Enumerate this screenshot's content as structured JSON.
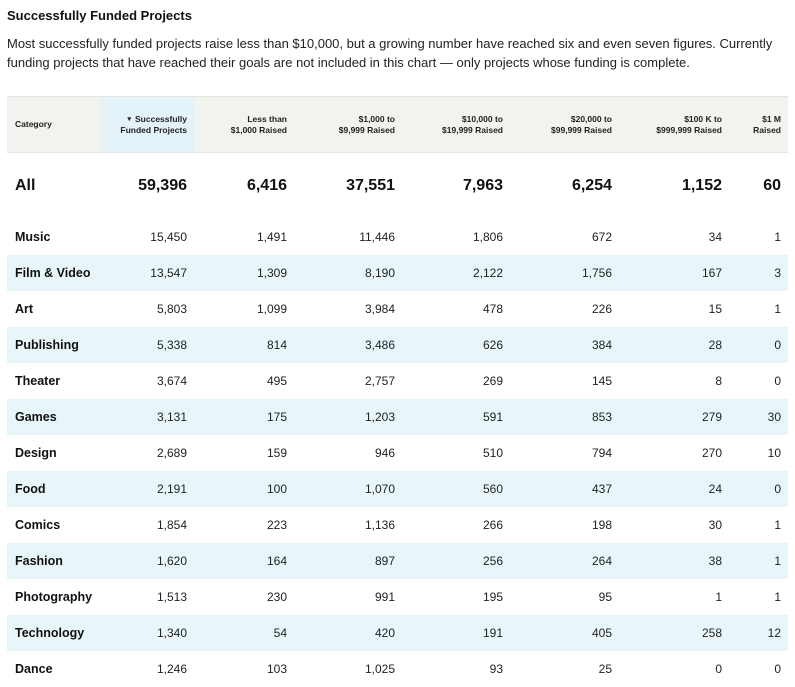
{
  "title": "Successfully Funded Projects",
  "description": "Most successfully funded projects raise less than $10,000, but a growing number have reached six and even seven figures. Currently funding projects that have reached their goals are not included in this chart — only projects whose funding is complete.",
  "chart_data": {
    "type": "table",
    "columns": [
      {
        "line1": "Category",
        "line2": ""
      },
      {
        "line1": "Successfully",
        "line2": "Funded Projects"
      },
      {
        "line1": "Less than",
        "line2": "$1,000 Raised"
      },
      {
        "line1": "$1,000 to",
        "line2": "$9,999 Raised"
      },
      {
        "line1": "$10,000 to",
        "line2": "$19,999 Raised"
      },
      {
        "line1": "$20,000 to",
        "line2": "$99,999 Raised"
      },
      {
        "line1": "$100 K to",
        "line2": "$999,999 Raised"
      },
      {
        "line1": "$1 M",
        "line2": "Raised"
      }
    ],
    "sorted_column": 1,
    "rows": [
      [
        "All",
        "59,396",
        "6,416",
        "37,551",
        "7,963",
        "6,254",
        "1,152",
        "60"
      ],
      [
        "Music",
        "15,450",
        "1,491",
        "11,446",
        "1,806",
        "672",
        "34",
        "1"
      ],
      [
        "Film & Video",
        "13,547",
        "1,309",
        "8,190",
        "2,122",
        "1,756",
        "167",
        "3"
      ],
      [
        "Art",
        "5,803",
        "1,099",
        "3,984",
        "478",
        "226",
        "15",
        "1"
      ],
      [
        "Publishing",
        "5,338",
        "814",
        "3,486",
        "626",
        "384",
        "28",
        "0"
      ],
      [
        "Theater",
        "3,674",
        "495",
        "2,757",
        "269",
        "145",
        "8",
        "0"
      ],
      [
        "Games",
        "3,131",
        "175",
        "1,203",
        "591",
        "853",
        "279",
        "30"
      ],
      [
        "Design",
        "2,689",
        "159",
        "946",
        "510",
        "794",
        "270",
        "10"
      ],
      [
        "Food",
        "2,191",
        "100",
        "1,070",
        "560",
        "437",
        "24",
        "0"
      ],
      [
        "Comics",
        "1,854",
        "223",
        "1,136",
        "266",
        "198",
        "30",
        "1"
      ],
      [
        "Fashion",
        "1,620",
        "164",
        "897",
        "256",
        "264",
        "38",
        "1"
      ],
      [
        "Photography",
        "1,513",
        "230",
        "991",
        "195",
        "95",
        "1",
        "1"
      ],
      [
        "Technology",
        "1,340",
        "54",
        "420",
        "191",
        "405",
        "258",
        "12"
      ],
      [
        "Dance",
        "1,246",
        "103",
        "1,025",
        "93",
        "25",
        "0",
        "0"
      ]
    ]
  },
  "colors": {
    "header_bg": "#f1f3ee",
    "sorted_header_bg": "#e4f3f9",
    "stripe_bg": "#e8f6fa"
  },
  "icons": {
    "sort": "▾"
  }
}
